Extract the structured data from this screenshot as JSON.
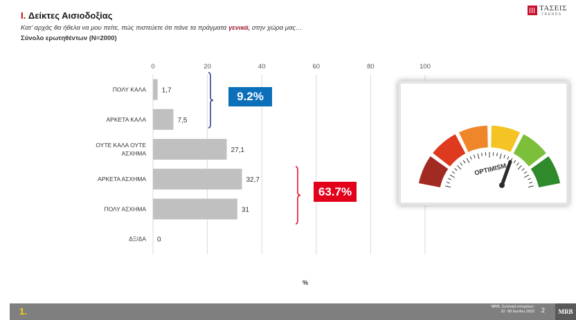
{
  "header": {
    "roman": "I.",
    "title": "Δείκτες Αισιοδοξίας",
    "question_pre": "Κατ’ αρχάς θα ήθελα να μου πείτε, πώς πιστεύετε ότι πάνε τα πράγματα ",
    "question_em": "γενικά,",
    "question_post": " στην χώρα μας…",
    "sample": "Σύνολο ερωτηθέντων (N=2000)"
  },
  "logo": {
    "name": "ΤΑΣΕΙΣ",
    "sub": "TRENDS"
  },
  "callouts": {
    "positive": "9.2%",
    "negative": "63.7%"
  },
  "gauge": {
    "label": "OPTIMISM",
    "colors": [
      "#a12b22",
      "#dd3a1f",
      "#f0862a",
      "#f4c425",
      "#7cbf3a",
      "#2f8a2b"
    ]
  },
  "footer": {
    "page_badge": "1.",
    "source_line1": "MRB, Συλλογή στοιχείων:",
    "source_line2": "22 -30 Ιουνίου 2022",
    "page_number": "2",
    "brand": "MRB"
  },
  "colors": {
    "bar": "#c0c0c0",
    "bracket_blue": "#2e3192",
    "bracket_red": "#e3001b"
  },
  "chart_data": {
    "type": "bar",
    "orientation": "horizontal",
    "categories": [
      "ΠΟΛΥ ΚΑΛΑ",
      "ΑΡΚΕΤΑ ΚΑΛΑ",
      "ΟΥΤΕ ΚΑΛΑ ΟΥΤΕ ΑΣΧΗΜΑ",
      "ΑΡΚΕΤΑ ΑΣΧΗΜΑ",
      "ΠΟΛΥ ΑΣΧΗΜΑ",
      "ΔΞ/ΔΑ"
    ],
    "values": [
      1.7,
      7.5,
      27.1,
      32.7,
      31,
      0
    ],
    "value_labels": [
      "1,7",
      "7,5",
      "27,1",
      "32,7",
      "31",
      "0"
    ],
    "xticks": [
      0,
      20,
      40,
      60,
      80,
      100
    ],
    "xlim": [
      0,
      100
    ],
    "xlabel": "%",
    "legend": "none"
  }
}
